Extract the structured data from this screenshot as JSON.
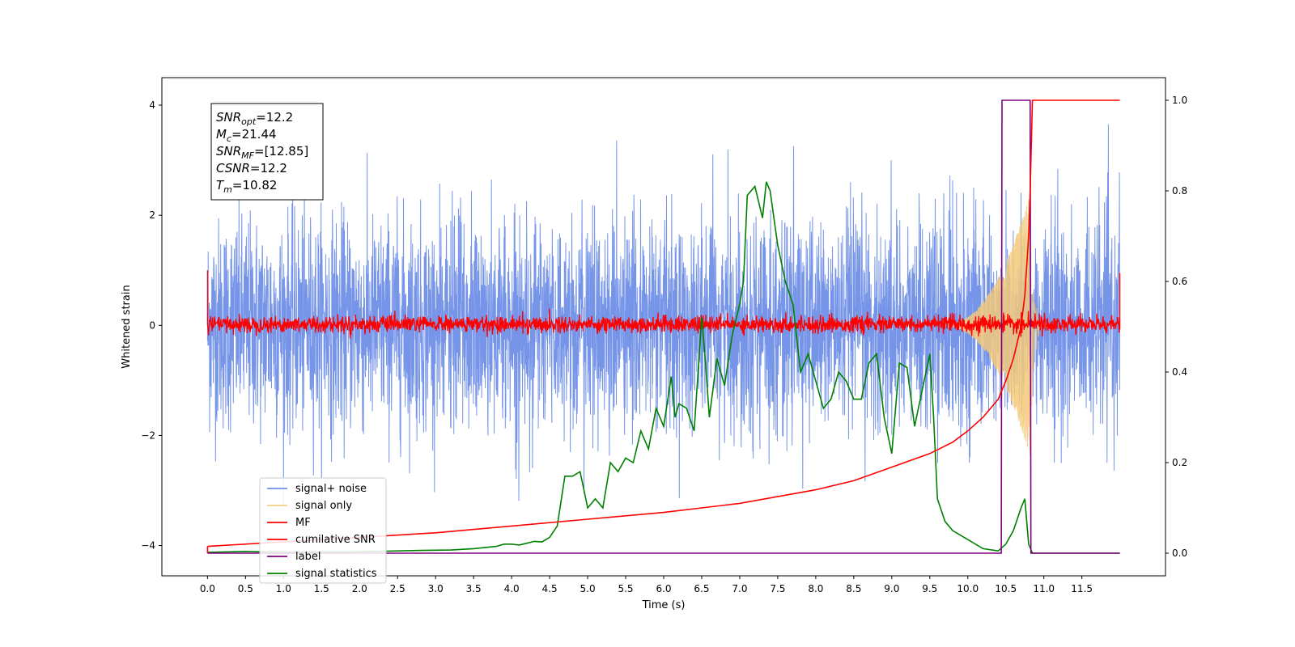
{
  "chart_data": {
    "type": "line",
    "xlabel": "Time (s)",
    "ylabel": "Whitened strain",
    "xlim": [
      -0.6,
      12.6
    ],
    "ylim": [
      -4.55,
      4.5
    ],
    "ylim_right": [
      -0.05,
      1.05
    ],
    "x_ticks": [
      "0.0",
      "0.5",
      "1.0",
      "1.5",
      "2.0",
      "2.5",
      "3.0",
      "3.5",
      "4.0",
      "4.5",
      "5.0",
      "5.5",
      "6.0",
      "6.5",
      "7.0",
      "7.5",
      "8.0",
      "8.5",
      "9.0",
      "9.5",
      "10.0",
      "10.5",
      "11.0",
      "11.5"
    ],
    "y_ticks": [
      "4",
      "2",
      "0",
      "−2",
      "−4"
    ],
    "y_ticks_right": [
      "1.0",
      "0.8",
      "0.6",
      "0.4",
      "0.2",
      "0.0"
    ],
    "grid": false,
    "legend_position": "lower-left",
    "annotation": {
      "lines": [
        {
          "sym": "SNR",
          "sub": "opt",
          "rest": "=12.2"
        },
        {
          "sym": "M",
          "sub": "c",
          "rest": "=21.44"
        },
        {
          "sym": "SNR",
          "sub": "MF",
          "rest": "=[12.85]"
        },
        {
          "sym": "CSNR",
          "sub": "",
          "rest": "=12.2"
        },
        {
          "sym": "T",
          "sub": "m",
          "rest": "=10.82"
        }
      ]
    },
    "series": [
      {
        "name": "signal+ noise",
        "color": "#6f8fe8",
        "axis": "left",
        "kind": "noise",
        "x_range": [
          0,
          12
        ],
        "envelope": [
          -2.7,
          4.0
        ]
      },
      {
        "name": "signal only",
        "color": "#f5c97a",
        "axis": "left",
        "kind": "chirp",
        "x_range": [
          9.7,
          10.82
        ],
        "peak_amplitude": 2.3
      },
      {
        "name": "MF",
        "color": "#ff0000",
        "axis": "left",
        "kind": "mf",
        "x_range": [
          0,
          12
        ],
        "amplitude": 0.15,
        "edge_values": [
          1.0,
          0.95
        ]
      },
      {
        "name": "cumilative SNR",
        "color": "#ff0000",
        "axis": "right",
        "x": [
          0.0,
          1.0,
          2.0,
          3.0,
          4.0,
          5.0,
          6.0,
          7.0,
          8.0,
          8.5,
          9.0,
          9.5,
          9.8,
          10.0,
          10.2,
          10.4,
          10.5,
          10.6,
          10.7,
          10.75,
          10.8,
          10.82,
          10.85,
          12.0
        ],
        "y": [
          0.015,
          0.025,
          0.035,
          0.045,
          0.06,
          0.075,
          0.09,
          0.11,
          0.14,
          0.16,
          0.19,
          0.22,
          0.245,
          0.27,
          0.3,
          0.34,
          0.38,
          0.43,
          0.5,
          0.57,
          0.7,
          0.8,
          1.0,
          1.0
        ]
      },
      {
        "name": "label",
        "color": "#800080",
        "axis": "right",
        "x": [
          0.0,
          10.44,
          10.45,
          10.82,
          10.83,
          12.0
        ],
        "y": [
          0.0,
          0.0,
          1.0,
          1.0,
          0.0,
          0.0
        ]
      },
      {
        "name": "signal statistics",
        "color": "#008000",
        "axis": "right",
        "x": [
          0.0,
          0.5,
          1.0,
          2.0,
          2.5,
          2.8,
          3.2,
          3.5,
          3.8,
          3.9,
          4.0,
          4.1,
          4.2,
          4.3,
          4.4,
          4.5,
          4.6,
          4.7,
          4.8,
          4.9,
          5.0,
          5.1,
          5.2,
          5.3,
          5.4,
          5.5,
          5.6,
          5.7,
          5.8,
          5.9,
          6.0,
          6.1,
          6.15,
          6.2,
          6.3,
          6.4,
          6.5,
          6.55,
          6.6,
          6.7,
          6.8,
          6.9,
          7.0,
          7.05,
          7.1,
          7.2,
          7.3,
          7.35,
          7.4,
          7.5,
          7.6,
          7.7,
          7.8,
          7.9,
          8.0,
          8.1,
          8.2,
          8.3,
          8.4,
          8.5,
          8.6,
          8.7,
          8.8,
          8.9,
          9.0,
          9.1,
          9.2,
          9.3,
          9.4,
          9.5,
          9.55,
          9.6,
          9.7,
          9.8,
          10.0,
          10.2,
          10.4,
          10.5,
          10.6,
          10.7,
          10.75,
          10.8,
          10.85,
          10.9,
          12.0
        ],
        "y": [
          0.002,
          0.004,
          0.002,
          0.003,
          0.005,
          0.006,
          0.007,
          0.01,
          0.015,
          0.02,
          0.02,
          0.018,
          0.022,
          0.026,
          0.025,
          0.035,
          0.06,
          0.17,
          0.17,
          0.18,
          0.1,
          0.12,
          0.1,
          0.2,
          0.18,
          0.21,
          0.2,
          0.27,
          0.23,
          0.32,
          0.28,
          0.39,
          0.3,
          0.33,
          0.32,
          0.27,
          0.52,
          0.42,
          0.3,
          0.43,
          0.37,
          0.48,
          0.55,
          0.6,
          0.79,
          0.81,
          0.74,
          0.82,
          0.8,
          0.68,
          0.6,
          0.55,
          0.4,
          0.44,
          0.38,
          0.32,
          0.34,
          0.4,
          0.38,
          0.34,
          0.34,
          0.42,
          0.44,
          0.3,
          0.22,
          0.42,
          0.41,
          0.28,
          0.36,
          0.44,
          0.3,
          0.12,
          0.07,
          0.05,
          0.03,
          0.01,
          0.005,
          0.02,
          0.05,
          0.1,
          0.12,
          0.02,
          0.0,
          0.0,
          0.0
        ]
      }
    ]
  }
}
